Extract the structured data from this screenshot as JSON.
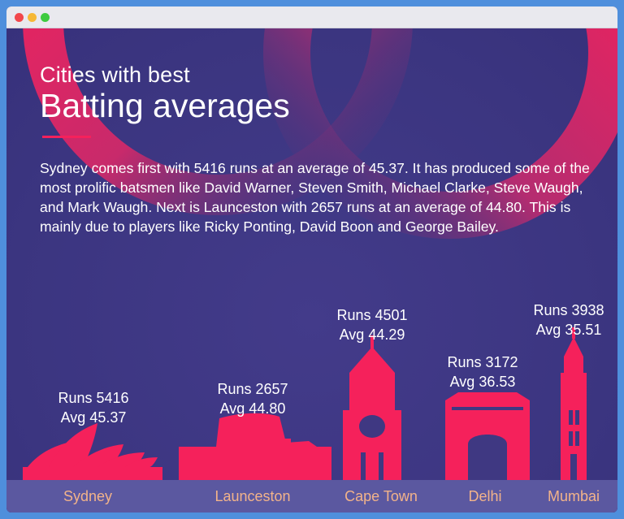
{
  "window": {
    "controls": [
      "close",
      "minimize",
      "maximize"
    ]
  },
  "header": {
    "subtitle": "Cities with best",
    "title": "Batting averages"
  },
  "description": "Sydney comes first with 5416 runs at an average of 45.37. It has produced some of the most prolific batsmen like David Warner, Steven Smith, Michael Clarke, Steve Waugh, and Mark Waugh. Next is Launceston with 2657 runs at an average of 44.80. This is mainly due to players like Ricky Ponting, David Boon and George Bailey.",
  "colors": {
    "background": "#3f3882",
    "accent": "#f5215b",
    "city_label": "#f2b38a",
    "footer_bar": "#5b58a0"
  },
  "chart_data": {
    "type": "bar",
    "title": "Batting averages",
    "categories": [
      "Sydney",
      "Launceston",
      "Cape Town",
      "Delhi",
      "Mumbai"
    ],
    "series": [
      {
        "name": "Runs",
        "values": [
          5416,
          2657,
          4501,
          3172,
          3938
        ]
      },
      {
        "name": "Avg",
        "values": [
          45.37,
          44.8,
          44.29,
          36.53,
          35.51
        ]
      }
    ],
    "landmark_icons": [
      "opera-house-icon",
      "stadium-icon",
      "clock-tower-icon",
      "india-gate-icon",
      "rajabai-tower-icon"
    ],
    "labels": [
      {
        "runs": "Runs 5416",
        "avg": "Avg 45.37"
      },
      {
        "runs": "Runs 2657",
        "avg": "Avg 44.80"
      },
      {
        "runs": "Runs 4501",
        "avg": "Avg 44.29"
      },
      {
        "runs": "Runs 3172",
        "avg": "Avg 36.53"
      },
      {
        "runs": "Runs 3938",
        "avg": "Avg 35.51"
      }
    ]
  }
}
